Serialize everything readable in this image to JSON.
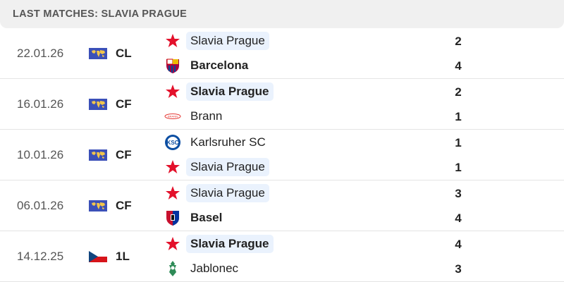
{
  "header": {
    "title": "LAST MATCHES: SLAVIA PRAGUE"
  },
  "matches": [
    {
      "date": "22.01.26",
      "competition": "CL",
      "comp_icon": "world-map-flag",
      "home": {
        "name": "Slavia Prague",
        "logo": "slavia-star",
        "score": "2",
        "winner": false,
        "highlight": true
      },
      "away": {
        "name": "Barcelona",
        "logo": "barcelona-crest",
        "score": "4",
        "winner": true,
        "highlight": false
      }
    },
    {
      "date": "16.01.26",
      "competition": "CF",
      "comp_icon": "world-map-flag",
      "home": {
        "name": "Slavia Prague",
        "logo": "slavia-star",
        "score": "2",
        "winner": true,
        "highlight": true
      },
      "away": {
        "name": "Brann",
        "logo": "brann-crest",
        "score": "1",
        "winner": false,
        "highlight": false
      }
    },
    {
      "date": "10.01.26",
      "competition": "CF",
      "comp_icon": "world-map-flag",
      "home": {
        "name": "Karlsruher SC",
        "logo": "ksc-crest",
        "score": "1",
        "winner": false,
        "highlight": false
      },
      "away": {
        "name": "Slavia Prague",
        "logo": "slavia-star",
        "score": "1",
        "winner": false,
        "highlight": true
      }
    },
    {
      "date": "06.01.26",
      "competition": "CF",
      "comp_icon": "world-map-flag",
      "home": {
        "name": "Slavia Prague",
        "logo": "slavia-star",
        "score": "3",
        "winner": false,
        "highlight": true
      },
      "away": {
        "name": "Basel",
        "logo": "basel-crest",
        "score": "4",
        "winner": true,
        "highlight": false
      }
    },
    {
      "date": "14.12.25",
      "competition": "1L",
      "comp_icon": "czech-flag",
      "home": {
        "name": "Slavia Prague",
        "logo": "slavia-star",
        "score": "4",
        "winner": true,
        "highlight": true
      },
      "away": {
        "name": "Jablonec",
        "logo": "jablonec-crest",
        "score": "3",
        "winner": false,
        "highlight": false
      }
    }
  ]
}
